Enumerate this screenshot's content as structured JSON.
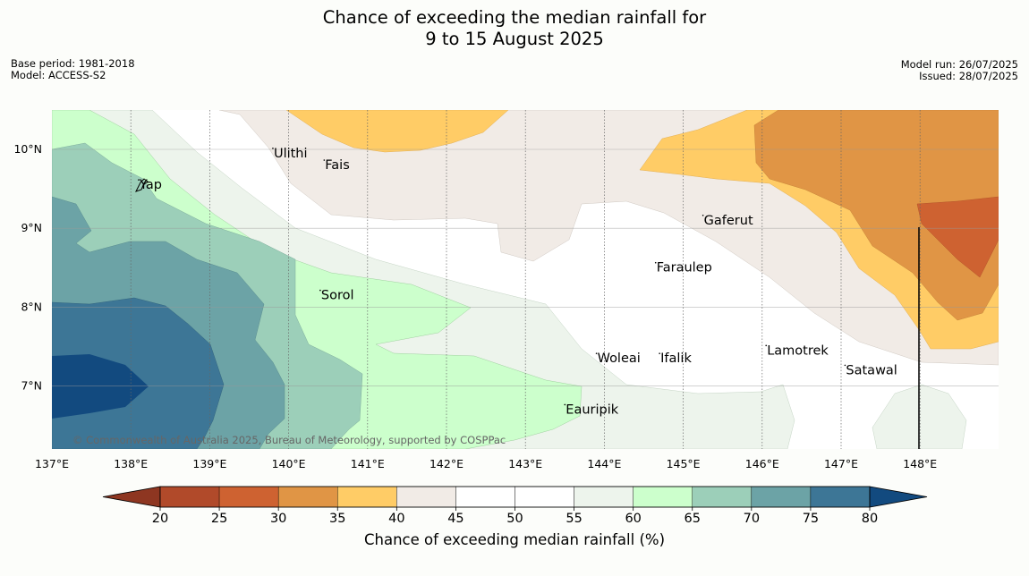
{
  "title": {
    "line1": "Chance of exceeding the median rainfall for",
    "line2": "9 to 15 August 2025"
  },
  "meta_left": {
    "base_period": "Base period: 1981-2018",
    "model": "Model: ACCESS-S2"
  },
  "meta_right": {
    "model_run": "Model run: 26/07/2025",
    "issued": "Issued: 28/07/2025"
  },
  "map": {
    "lon_range": [
      137,
      149
    ],
    "lat_range": [
      6.2,
      10.5
    ],
    "lon_ticks": [
      {
        "value": 137,
        "label": "137°E"
      },
      {
        "value": 138,
        "label": "138°E"
      },
      {
        "value": 139,
        "label": "139°E"
      },
      {
        "value": 140,
        "label": "140°E"
      },
      {
        "value": 141,
        "label": "141°E"
      },
      {
        "value": 142,
        "label": "142°E"
      },
      {
        "value": 143,
        "label": "143°E"
      },
      {
        "value": 144,
        "label": "144°E"
      },
      {
        "value": 145,
        "label": "145°E"
      },
      {
        "value": 146,
        "label": "146°E"
      },
      {
        "value": 147,
        "label": "147°E"
      },
      {
        "value": 148,
        "label": "148°E"
      }
    ],
    "lat_ticks": [
      {
        "value": 10,
        "label": "10°N"
      },
      {
        "value": 9,
        "label": "9°N"
      },
      {
        "value": 8,
        "label": "8°N"
      },
      {
        "value": 7,
        "label": "7°N"
      }
    ],
    "places": [
      {
        "name": "Ulithi",
        "lon": 139.8,
        "lat": 9.9
      },
      {
        "name": "Fais",
        "lon": 140.45,
        "lat": 9.75
      },
      {
        "name": "Yap",
        "lon": 138.1,
        "lat": 9.5
      },
      {
        "name": "Gaferut",
        "lon": 145.25,
        "lat": 9.05
      },
      {
        "name": "Faraulep",
        "lon": 144.65,
        "lat": 8.45
      },
      {
        "name": "Sorol",
        "lon": 140.4,
        "lat": 8.1
      },
      {
        "name": "Lamotrek",
        "lon": 146.05,
        "lat": 7.4
      },
      {
        "name": "Woleai",
        "lon": 143.9,
        "lat": 7.3
      },
      {
        "name": "Ifalik",
        "lon": 144.7,
        "lat": 7.3
      },
      {
        "name": "Satawal",
        "lon": 147.05,
        "lat": 7.15
      },
      {
        "name": "Eauripik",
        "lon": 143.5,
        "lat": 6.65
      }
    ],
    "attribution": "© Commonwealth of Australia 2025, Bureau of Meteorology, supported by COSPPac",
    "grid": true
  },
  "colorbar": {
    "label": "Chance of exceeding median rainfall (%)",
    "ticks": [
      "20",
      "25",
      "30",
      "35",
      "40",
      "45",
      "50",
      "55",
      "60",
      "65",
      "70",
      "75",
      "80"
    ],
    "under_color": "#8e3621",
    "over_color": "#124a7f",
    "colors": [
      "#b14a2a",
      "#ce6231",
      "#e09545",
      "#ffcc66",
      "#f1ebe6",
      "#ffffff",
      "#ffffff",
      "#edf4ec",
      "#ccffcc",
      "#9ccfb9",
      "#6ca3a6",
      "#3d7696"
    ]
  },
  "chart_data": {
    "type": "heatmap",
    "title": "Chance of exceeding the median rainfall for 9 to 15 August 2025",
    "xlabel": "",
    "ylabel": "",
    "xlim": [
      137,
      149
    ],
    "ylim": [
      6.2,
      10.5
    ],
    "colorbar_label": "Chance of exceeding median rainfall (%)",
    "levels": [
      20,
      25,
      30,
      35,
      40,
      45,
      50,
      55,
      60,
      65,
      70,
      75,
      80
    ]
  }
}
